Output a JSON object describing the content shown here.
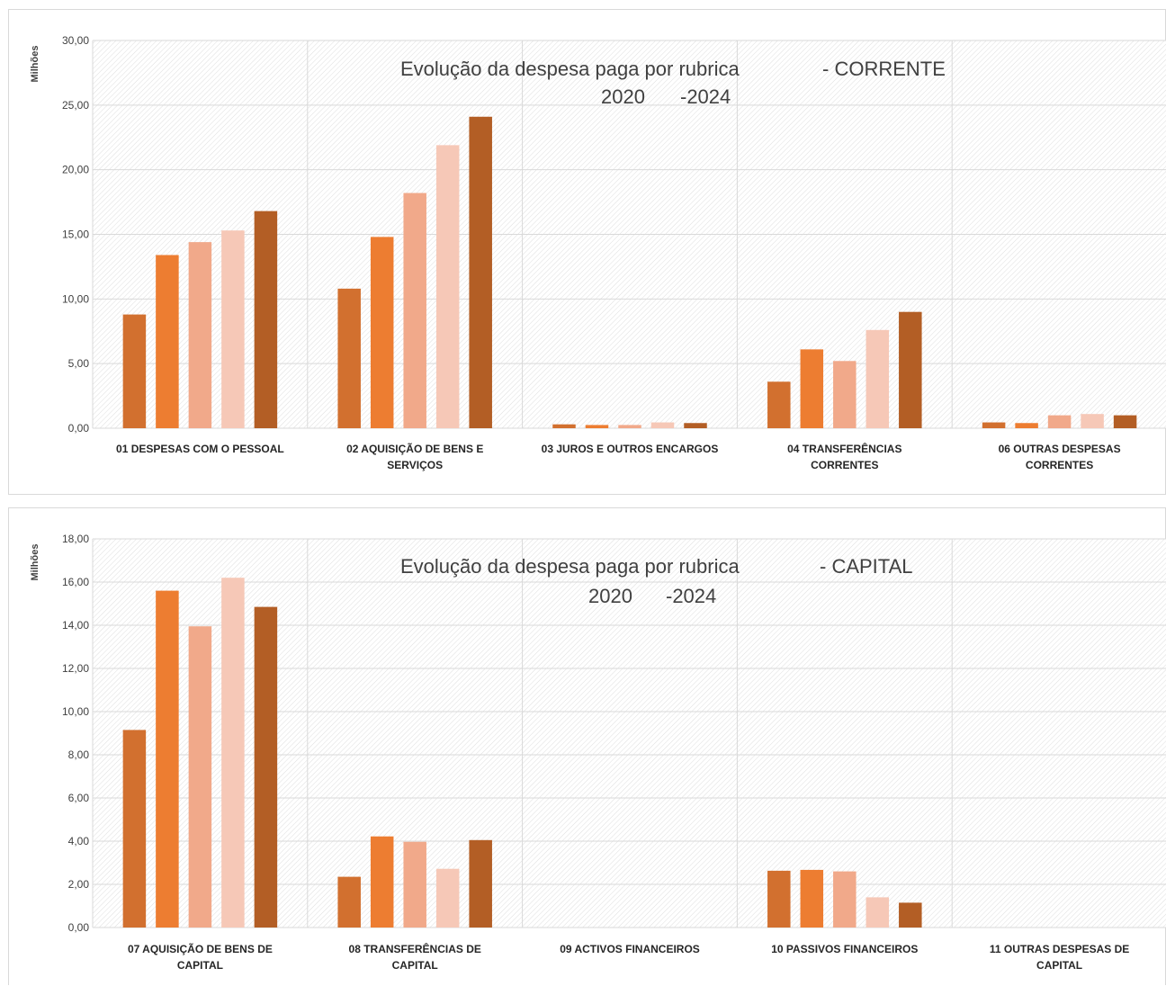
{
  "colors": {
    "series": [
      "#d2702f",
      "#ed7d31",
      "#f1a98a",
      "#f6c8b7",
      "#b35e25"
    ],
    "grid": "#d9d9d9",
    "plot_background": "#ffffff",
    "hatch": "#dedede"
  },
  "chart_data": [
    {
      "id": "corrente",
      "type": "bar",
      "title_line1": "Evolução da despesa paga por rubrica",
      "title_suffix": "- CORRENTE",
      "title_line2_a": "2020",
      "title_line2_b": "-2024",
      "ylabel": "Milhões",
      "ylim": [
        0,
        30
      ],
      "yticks": [
        "0,00",
        "5,00",
        "10,00",
        "15,00",
        "20,00",
        "25,00",
        "30,00"
      ],
      "ytick_values": [
        0,
        5,
        10,
        15,
        20,
        25,
        30
      ],
      "grid": true,
      "categories": [
        [
          "01  DESPESAS COM O PESSOAL"
        ],
        [
          "02  AQUISIÇÃO DE BENS E",
          "SERVIÇOS"
        ],
        [
          "03  JUROS E OUTROS ENCARGOS"
        ],
        [
          "04  TRANSFERÊNCIAS",
          "CORRENTES"
        ],
        [
          "06  OUTRAS DESPESAS",
          "CORRENTES"
        ]
      ],
      "values": [
        [
          8.8,
          13.4,
          14.4,
          15.3,
          16.8
        ],
        [
          10.8,
          14.8,
          18.2,
          21.9,
          24.1
        ],
        [
          0.3,
          0.25,
          0.25,
          0.45,
          0.4
        ],
        [
          3.6,
          6.1,
          5.2,
          7.6,
          9.0
        ],
        [
          0.45,
          0.4,
          1.0,
          1.1,
          1.0
        ]
      ]
    },
    {
      "id": "capital",
      "type": "bar",
      "title_line1": "Evolução da despesa paga por rubrica",
      "title_suffix": "- CAPITAL",
      "title_line2_a": "2020",
      "title_line2_b": "-2024",
      "ylabel": "Milhões",
      "ylim": [
        0,
        18
      ],
      "yticks": [
        "0,00",
        "2,00",
        "4,00",
        "6,00",
        "8,00",
        "10,00",
        "12,00",
        "14,00",
        "16,00",
        "18,00"
      ],
      "ytick_values": [
        0,
        2,
        4,
        6,
        8,
        10,
        12,
        14,
        16,
        18
      ],
      "grid": true,
      "categories": [
        [
          "07  AQUISIÇÃO DE BENS DE",
          "CAPITAL"
        ],
        [
          "08  TRANSFERÊNCIAS DE",
          "CAPITAL"
        ],
        [
          "09  ACTIVOS FINANCEIROS"
        ],
        [
          "10  PASSIVOS FINANCEIROS"
        ],
        [
          "11  OUTRAS DESPESAS DE",
          "CAPITAL"
        ]
      ],
      "values": [
        [
          9.15,
          15.6,
          13.95,
          16.2,
          14.85
        ],
        [
          2.35,
          4.22,
          3.97,
          2.72,
          4.05
        ],
        [
          0,
          0,
          0,
          0,
          0
        ],
        [
          2.63,
          2.67,
          2.6,
          1.4,
          1.15
        ],
        [
          0,
          0,
          0,
          0,
          0
        ]
      ]
    }
  ]
}
